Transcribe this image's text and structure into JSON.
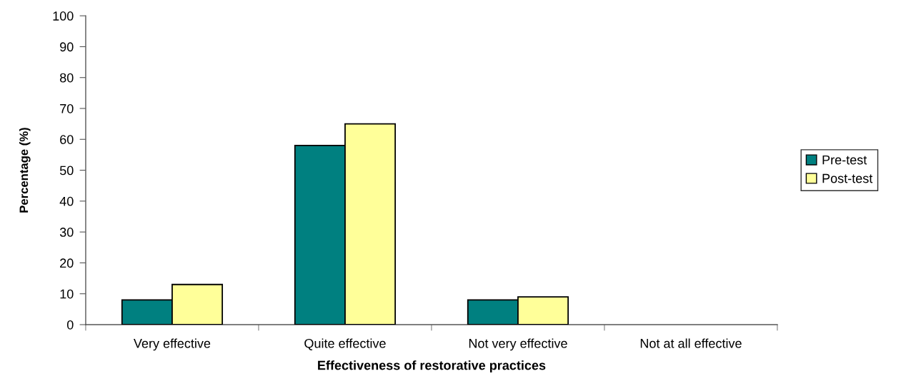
{
  "chart_data": {
    "type": "bar",
    "xlabel": "Effectiveness of restorative practices",
    "ylabel": "Percentage (%)",
    "categories": [
      "Very effective",
      "Quite effective",
      "Not very effective",
      "Not at all effective"
    ],
    "series": [
      {
        "name": "Pre-test",
        "color": "#008080",
        "values": [
          8,
          58,
          8,
          0
        ]
      },
      {
        "name": "Post-test",
        "color": "#ffff99",
        "values": [
          13,
          65,
          9,
          0
        ]
      }
    ],
    "ylim": [
      0,
      100
    ],
    "yticks": [
      0,
      10,
      20,
      30,
      40,
      50,
      60,
      70,
      80,
      90,
      100
    ],
    "grid": false,
    "legend": "right"
  }
}
